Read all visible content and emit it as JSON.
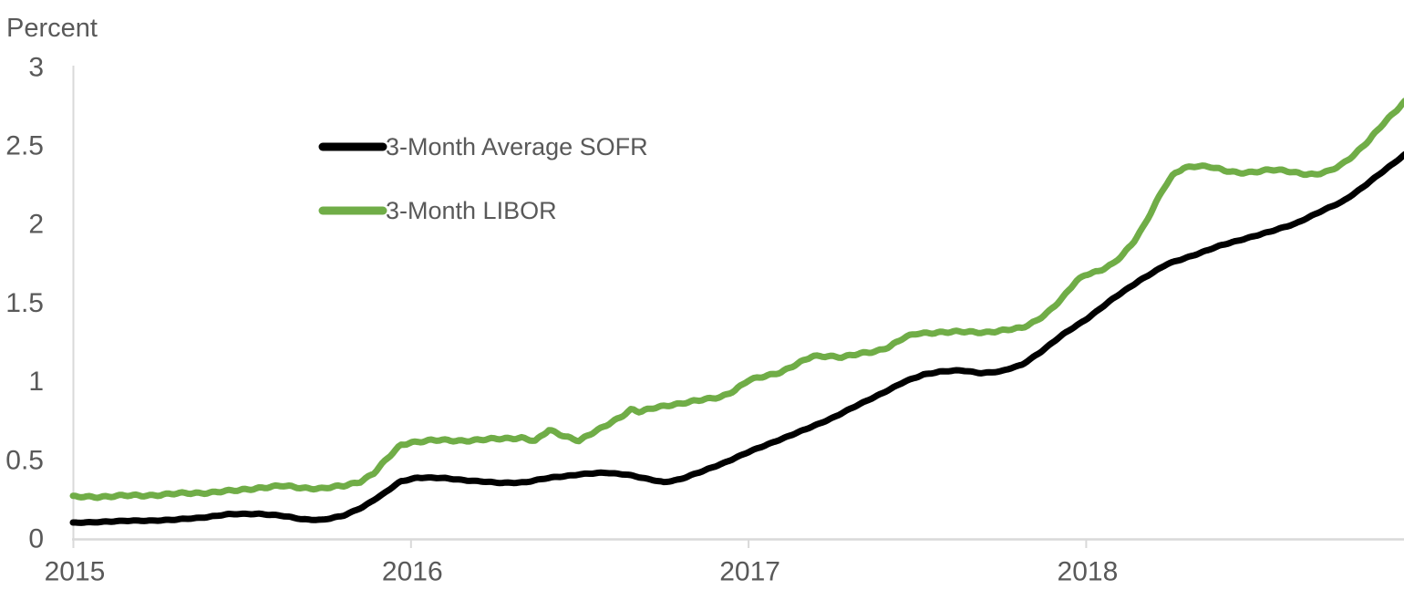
{
  "colors": {
    "text": "#595959",
    "axis_line": "#d9d9d9",
    "background": "#ffffff",
    "sofr_line": "#000000",
    "libor_line": "#70ad47"
  },
  "chart_data": {
    "type": "line",
    "title": "",
    "ylabel": "Percent",
    "xlabel": "",
    "grid": false,
    "legend_position": "inside-upper-left",
    "ylim": [
      0,
      3
    ],
    "xlim": [
      2015,
      2018.95
    ],
    "y_axis": {
      "ticks": [
        {
          "label": "0",
          "value": 0
        },
        {
          "label": "0.5",
          "value": 0.5
        },
        {
          "label": "1",
          "value": 1
        },
        {
          "label": "1.5",
          "value": 1.5
        },
        {
          "label": "2",
          "value": 2
        },
        {
          "label": "2.5",
          "value": 2.5
        },
        {
          "label": "3",
          "value": 3
        }
      ]
    },
    "x_axis": {
      "ticks": [
        {
          "label": "2015",
          "value": 2015
        },
        {
          "label": "2016",
          "value": 2016
        },
        {
          "label": "2017",
          "value": 2017
        },
        {
          "label": "2018",
          "value": 2018
        }
      ]
    },
    "series": [
      {
        "key": "sofr",
        "name": "3-Month Average SOFR",
        "color": "#000000",
        "points": [
          [
            2015.0,
            0.095
          ],
          [
            2015.1,
            0.105
          ],
          [
            2015.2,
            0.11
          ],
          [
            2015.3,
            0.115
          ],
          [
            2015.38,
            0.13
          ],
          [
            2015.46,
            0.15
          ],
          [
            2015.55,
            0.155
          ],
          [
            2015.62,
            0.14
          ],
          [
            2015.68,
            0.12
          ],
          [
            2015.74,
            0.115
          ],
          [
            2015.8,
            0.14
          ],
          [
            2015.86,
            0.2
          ],
          [
            2015.92,
            0.28
          ],
          [
            2015.97,
            0.36
          ],
          [
            2016.02,
            0.385
          ],
          [
            2016.1,
            0.38
          ],
          [
            2016.18,
            0.365
          ],
          [
            2016.26,
            0.35
          ],
          [
            2016.34,
            0.355
          ],
          [
            2016.42,
            0.385
          ],
          [
            2016.5,
            0.405
          ],
          [
            2016.58,
            0.415
          ],
          [
            2016.64,
            0.405
          ],
          [
            2016.7,
            0.375
          ],
          [
            2016.75,
            0.355
          ],
          [
            2016.8,
            0.375
          ],
          [
            2016.86,
            0.42
          ],
          [
            2016.93,
            0.48
          ],
          [
            2017.0,
            0.545
          ],
          [
            2017.08,
            0.615
          ],
          [
            2017.17,
            0.69
          ],
          [
            2017.25,
            0.765
          ],
          [
            2017.33,
            0.85
          ],
          [
            2017.4,
            0.925
          ],
          [
            2017.46,
            0.99
          ],
          [
            2017.52,
            1.04
          ],
          [
            2017.57,
            1.06
          ],
          [
            2017.63,
            1.065
          ],
          [
            2017.69,
            1.05
          ],
          [
            2017.75,
            1.06
          ],
          [
            2017.81,
            1.1
          ],
          [
            2017.87,
            1.19
          ],
          [
            2017.93,
            1.29
          ],
          [
            2018.0,
            1.39
          ],
          [
            2018.08,
            1.52
          ],
          [
            2018.16,
            1.64
          ],
          [
            2018.24,
            1.74
          ],
          [
            2018.32,
            1.8
          ],
          [
            2018.4,
            1.86
          ],
          [
            2018.48,
            1.91
          ],
          [
            2018.55,
            1.95
          ],
          [
            2018.62,
            2.0
          ],
          [
            2018.69,
            2.07
          ],
          [
            2018.76,
            2.14
          ],
          [
            2018.82,
            2.23
          ],
          [
            2018.88,
            2.33
          ],
          [
            2018.945,
            2.44
          ]
        ]
      },
      {
        "key": "libor",
        "name": "3-Month LIBOR",
        "color": "#70ad47",
        "points": [
          [
            2015.0,
            0.26
          ],
          [
            2015.1,
            0.265
          ],
          [
            2015.2,
            0.27
          ],
          [
            2015.3,
            0.28
          ],
          [
            2015.4,
            0.29
          ],
          [
            2015.48,
            0.3
          ],
          [
            2015.55,
            0.32
          ],
          [
            2015.62,
            0.33
          ],
          [
            2015.68,
            0.32
          ],
          [
            2015.74,
            0.315
          ],
          [
            2015.8,
            0.33
          ],
          [
            2015.85,
            0.36
          ],
          [
            2015.89,
            0.41
          ],
          [
            2015.93,
            0.5
          ],
          [
            2015.97,
            0.59
          ],
          [
            2016.0,
            0.61
          ],
          [
            2016.06,
            0.62
          ],
          [
            2016.14,
            0.62
          ],
          [
            2016.22,
            0.625
          ],
          [
            2016.26,
            0.63
          ],
          [
            2016.33,
            0.64
          ],
          [
            2016.37,
            0.615
          ],
          [
            2016.41,
            0.685
          ],
          [
            2016.45,
            0.655
          ],
          [
            2016.5,
            0.62
          ],
          [
            2016.56,
            0.69
          ],
          [
            2016.62,
            0.77
          ],
          [
            2016.655,
            0.82
          ],
          [
            2016.68,
            0.8
          ],
          [
            2016.72,
            0.825
          ],
          [
            2016.76,
            0.845
          ],
          [
            2016.86,
            0.875
          ],
          [
            2016.92,
            0.9
          ],
          [
            2016.96,
            0.94
          ],
          [
            2017.0,
            1.0
          ],
          [
            2017.05,
            1.03
          ],
          [
            2017.1,
            1.06
          ],
          [
            2017.15,
            1.11
          ],
          [
            2017.19,
            1.155
          ],
          [
            2017.24,
            1.16
          ],
          [
            2017.28,
            1.15
          ],
          [
            2017.33,
            1.17
          ],
          [
            2017.38,
            1.19
          ],
          [
            2017.42,
            1.22
          ],
          [
            2017.46,
            1.27
          ],
          [
            2017.5,
            1.3
          ],
          [
            2017.56,
            1.31
          ],
          [
            2017.63,
            1.31
          ],
          [
            2017.7,
            1.31
          ],
          [
            2017.76,
            1.32
          ],
          [
            2017.81,
            1.335
          ],
          [
            2017.85,
            1.38
          ],
          [
            2017.89,
            1.44
          ],
          [
            2017.93,
            1.52
          ],
          [
            2017.97,
            1.63
          ],
          [
            2018.0,
            1.68
          ],
          [
            2018.04,
            1.7
          ],
          [
            2018.08,
            1.74
          ],
          [
            2018.11,
            1.8
          ],
          [
            2018.14,
            1.88
          ],
          [
            2018.17,
            1.98
          ],
          [
            2018.2,
            2.1
          ],
          [
            2018.23,
            2.22
          ],
          [
            2018.26,
            2.31
          ],
          [
            2018.29,
            2.355
          ],
          [
            2018.33,
            2.37
          ],
          [
            2018.37,
            2.36
          ],
          [
            2018.41,
            2.335
          ],
          [
            2018.45,
            2.325
          ],
          [
            2018.5,
            2.33
          ],
          [
            2018.55,
            2.34
          ],
          [
            2018.6,
            2.335
          ],
          [
            2018.64,
            2.32
          ],
          [
            2018.68,
            2.31
          ],
          [
            2018.72,
            2.33
          ],
          [
            2018.76,
            2.38
          ],
          [
            2018.8,
            2.45
          ],
          [
            2018.84,
            2.53
          ],
          [
            2018.88,
            2.63
          ],
          [
            2018.91,
            2.7
          ],
          [
            2018.945,
            2.78
          ]
        ]
      }
    ]
  }
}
